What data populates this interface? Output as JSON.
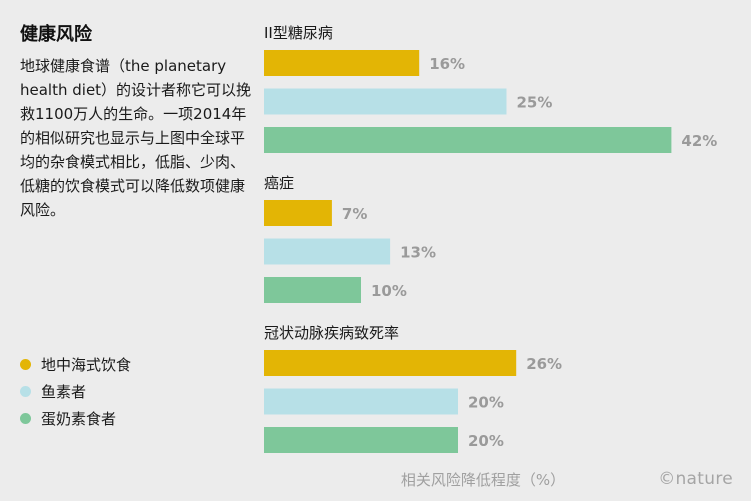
{
  "title": "健康风险",
  "description": "地球健康食谱（the planetary health diet）的设计者称它可以挽救1100万人的生命。一项2014年的相似研究也显示与上图中全球平均的杂食模式相比，低脂、少肉、低糖的饮食模式可以降低数项健康风险。",
  "brand": "©nature",
  "chart_data": {
    "type": "bar",
    "orientation": "horizontal",
    "title": "",
    "xlabel": "相关风险降低程度（%）",
    "ylabel": "",
    "xlim": [
      0,
      42
    ],
    "grid": false,
    "legend_placement": "left",
    "value_suffix": "%",
    "series": [
      {
        "name": "地中海式饮食",
        "color": "#e3b505"
      },
      {
        "name": "鱼素者",
        "color": "#b7e0e7"
      },
      {
        "name": "蛋奶素食者",
        "color": "#7ec79a"
      }
    ],
    "groups": [
      {
        "label": "II型糖尿病",
        "values": [
          16,
          25,
          42
        ]
      },
      {
        "label": "癌症",
        "values": [
          7,
          13,
          10
        ]
      },
      {
        "label": "冠状动脉疾病致死率",
        "values": [
          26,
          20,
          20
        ]
      }
    ]
  }
}
